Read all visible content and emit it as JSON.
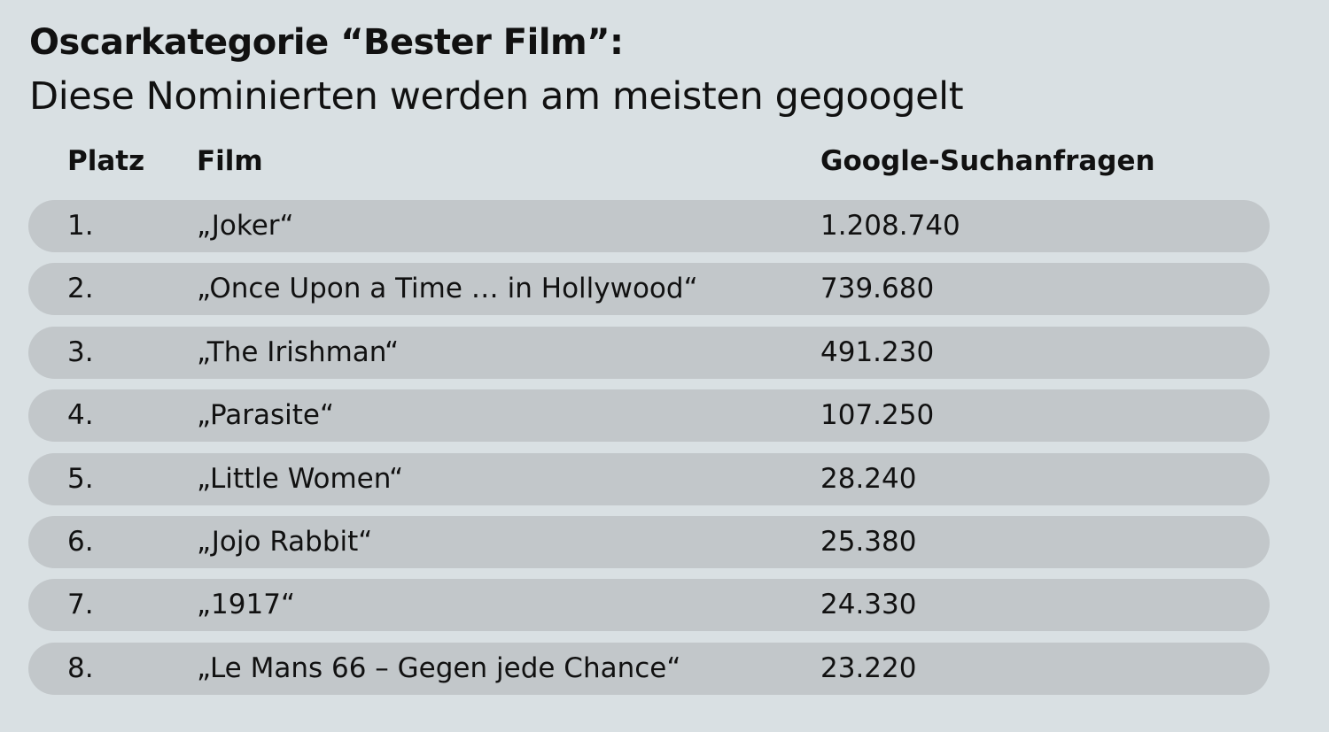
{
  "title": "Oscarkategorie “Bester Film”:",
  "subtitle": "Diese Nominierten werden am meisten gegoogelt",
  "chart_data": {
    "type": "table",
    "title": "Oscarkategorie “Bester Film”:",
    "subtitle": "Diese Nominierten werden am meisten gegoogelt",
    "columns": [
      "Platz",
      "Film",
      "Google-Suchanfragen"
    ],
    "rows": [
      {
        "rank": "1.",
        "film": "„Joker“",
        "searches": "1.208.740"
      },
      {
        "rank": "2.",
        "film": "„Once Upon a Time … in Hollywood“",
        "searches": "739.680"
      },
      {
        "rank": "3.",
        "film": "„The Irishman“",
        "searches": "491.230"
      },
      {
        "rank": "4.",
        "film": "„Parasite“",
        "searches": "107.250"
      },
      {
        "rank": "5.",
        "film": "„Little Women“",
        "searches": "28.240"
      },
      {
        "rank": "6.",
        "film": "„Jojo Rabbit“",
        "searches": "25.380"
      },
      {
        "rank": "7.",
        "film": "„1917“",
        "searches": "24.330"
      },
      {
        "rank": "8.",
        "film": "„Le Mans 66 – Gegen jede Chance“",
        "searches": "23.220"
      }
    ]
  },
  "colors": {
    "background": "#d9e0e3",
    "row_background": "#c2c7ca",
    "text": "#111111"
  }
}
